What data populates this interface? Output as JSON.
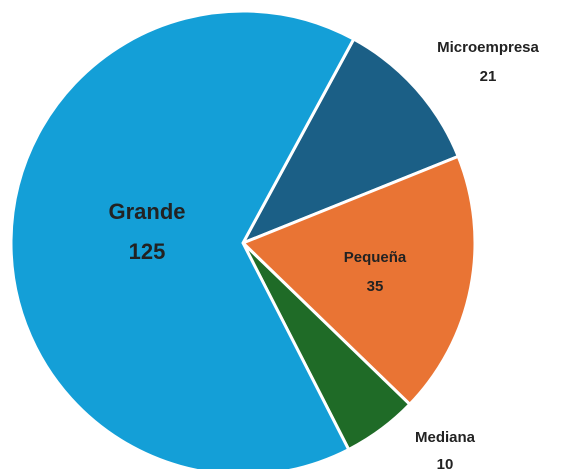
{
  "chart_data": {
    "type": "pie",
    "categories": [
      "Microempresa",
      "Pequeña",
      "Mediana",
      "Grande"
    ],
    "values": [
      21,
      35,
      10,
      125
    ],
    "colors": [
      "#1b5f86",
      "#e97434",
      "#1f6b27",
      "#149fd7"
    ]
  }
}
